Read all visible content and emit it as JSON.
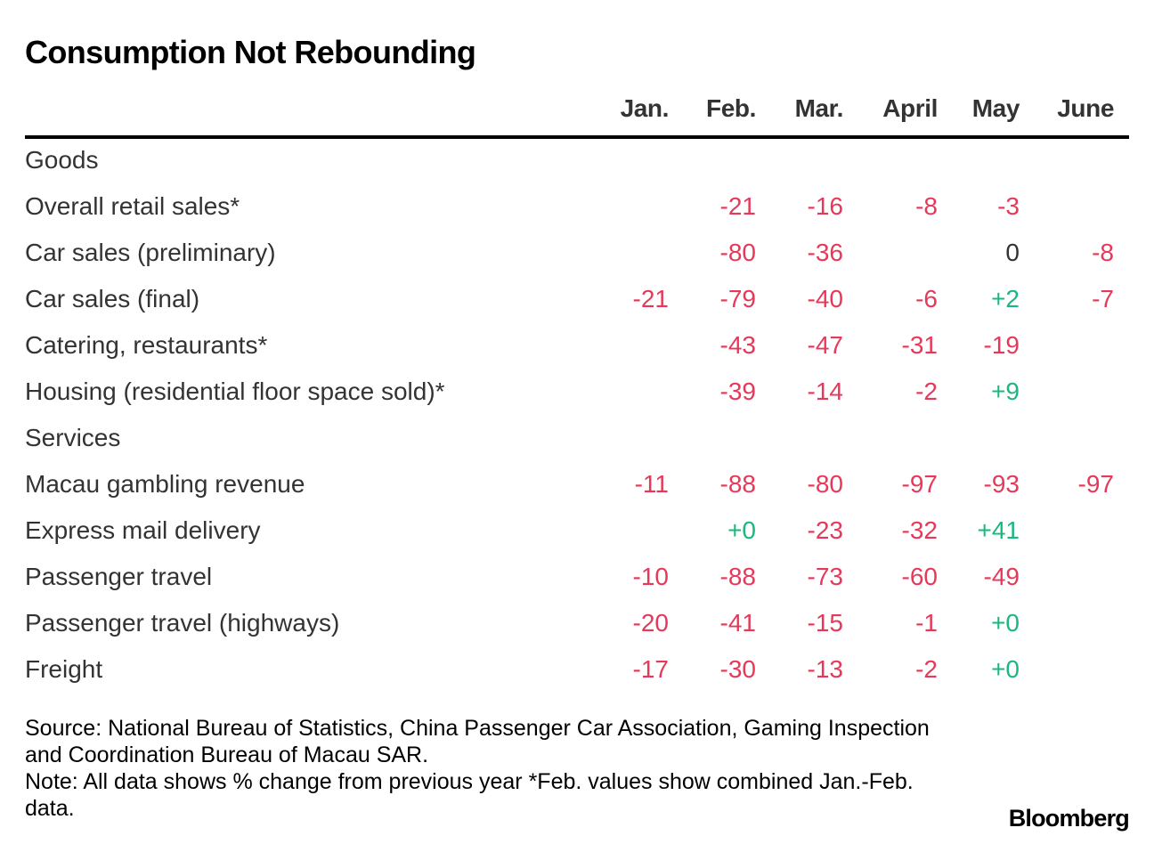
{
  "chart_data": {
    "type": "table",
    "title": "Consumption Not Rebounding",
    "columns": [
      "Jan.",
      "Feb.",
      "Mar.",
      "April",
      "May",
      "June"
    ],
    "rows": [
      {
        "label": "Goods",
        "section": true,
        "values": [
          "",
          "",
          "",
          "",
          "",
          ""
        ]
      },
      {
        "label": "Overall retail sales*",
        "values": [
          "",
          "-21",
          "-16",
          "-8",
          "-3",
          ""
        ]
      },
      {
        "label": "Car sales (preliminary)",
        "values": [
          "",
          "-80",
          "-36",
          "",
          "0",
          "-8"
        ]
      },
      {
        "label": "Car sales (final)",
        "values": [
          "-21",
          "-79",
          "-40",
          "-6",
          "+2",
          "-7"
        ]
      },
      {
        "label": "Catering, restaurants*",
        "values": [
          "",
          "-43",
          "-47",
          "-31",
          "-19",
          ""
        ]
      },
      {
        "label": "Housing (residential floor space sold)*",
        "values": [
          "",
          "-39",
          "-14",
          "-2",
          "+9",
          ""
        ]
      },
      {
        "label": "Services",
        "section": true,
        "values": [
          "",
          "",
          "",
          "",
          "",
          ""
        ]
      },
      {
        "label": "Macau gambling revenue",
        "values": [
          "-11",
          "-88",
          "-80",
          "-97",
          "-93",
          "-97"
        ]
      },
      {
        "label": "Express mail delivery",
        "values": [
          "",
          "+0",
          "-23",
          "-32",
          "+41",
          ""
        ]
      },
      {
        "label": "Passenger travel",
        "values": [
          "-10",
          "-88",
          "-73",
          "-60",
          "-49",
          ""
        ]
      },
      {
        "label": "Passenger travel (highways)",
        "values": [
          "-20",
          "-41",
          "-15",
          "-1",
          "+0",
          ""
        ]
      },
      {
        "label": "Freight",
        "values": [
          "-17",
          "-30",
          "-13",
          "-2",
          "+0",
          ""
        ]
      }
    ]
  },
  "colors": {
    "negative": "#e8385a",
    "positive": "#19b87e",
    "neutral": "#333333"
  },
  "footer": {
    "source": "Source: National Bureau of Statistics, China Passenger Car Association, Gaming Inspection and Coordination Bureau of Macau SAR.",
    "note": "Note: All data shows % change from previous year *Feb. values show combined Jan.-Feb. data."
  },
  "brand": "Bloomberg"
}
